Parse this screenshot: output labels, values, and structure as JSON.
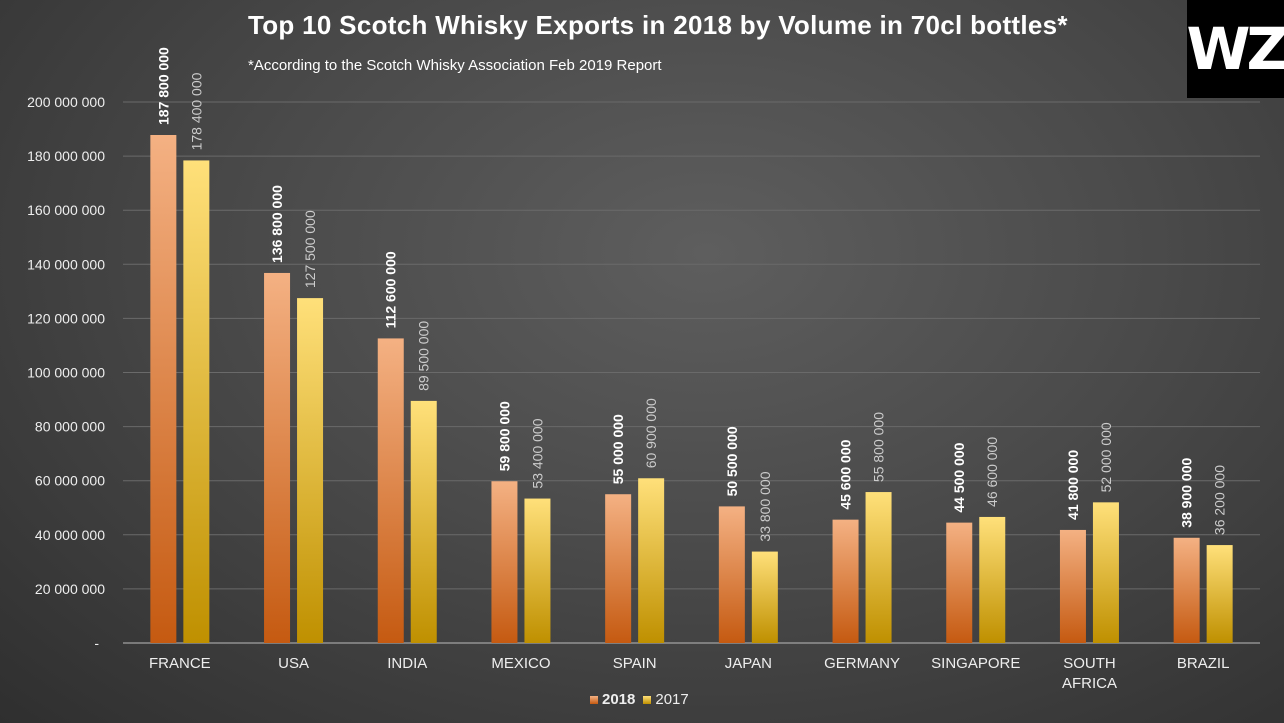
{
  "chart_data": {
    "type": "bar",
    "title": "Top 10 Scotch Whisky Exports in 2018 by Volume in 70cl bottles*",
    "subtitle": "*According to the Scotch Whisky Association Feb 2019 Report",
    "categories": [
      "FRANCE",
      "USA",
      "INDIA",
      "MEXICO",
      "SPAIN",
      "JAPAN",
      "GERMANY",
      "SINGAPORE",
      "SOUTH AFRICA",
      "BRAZIL"
    ],
    "series": [
      {
        "name": "2018",
        "values": [
          187800000,
          136800000,
          112600000,
          59800000,
          55000000,
          50500000,
          45600000,
          44500000,
          41800000,
          38900000
        ],
        "labels": [
          "187 800 000",
          "136 800 000",
          "112 600 000",
          "59 800 000",
          "55 000 000",
          "50 500 000",
          "45 600 000",
          "44 500 000",
          "41 800 000",
          "38 900 000"
        ],
        "color_top": "#f4b183",
        "color_bottom": "#c55a11"
      },
      {
        "name": "2017",
        "values": [
          178400000,
          127500000,
          89500000,
          53400000,
          60900000,
          33800000,
          55800000,
          46600000,
          52000000,
          36200000
        ],
        "labels": [
          "178 400 000",
          "127 500 000",
          "89 500 000",
          "53 400 000",
          "60 900 000",
          "33 800 000",
          "55 800 000",
          "46 600 000",
          "52 000 000",
          "36 200 000"
        ],
        "color_top": "#ffe07a",
        "color_bottom": "#bf9000"
      }
    ],
    "ylim": [
      0,
      200000000
    ],
    "yticks": [
      0,
      20000000,
      40000000,
      60000000,
      80000000,
      100000000,
      120000000,
      140000000,
      160000000,
      180000000,
      200000000
    ],
    "ytick_labels": [
      "-",
      "20 000 000",
      "40 000 000",
      "60 000 000",
      "80 000 000",
      "100 000 000",
      "120 000 000",
      "140 000 000",
      "160 000 000",
      "180 000 000",
      "200 000 000"
    ],
    "grid": true,
    "legend": "bottom"
  },
  "logo": "WZ"
}
